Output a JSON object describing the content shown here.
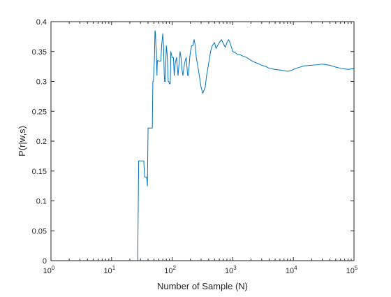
{
  "chart_data": {
    "type": "line",
    "title": "",
    "xlabel": "Number of Sample (N)",
    "ylabel": "P(r|w,s)",
    "xscale": "log",
    "xlim": [
      1,
      100000
    ],
    "ylim": [
      0,
      0.4
    ],
    "grid": false,
    "legend": "none",
    "line_color": "#0072BD",
    "axis_color": "#262626",
    "x_ticks": [
      {
        "base": "10",
        "exp": "0"
      },
      {
        "base": "10",
        "exp": "1"
      },
      {
        "base": "10",
        "exp": "2"
      },
      {
        "base": "10",
        "exp": "3"
      },
      {
        "base": "10",
        "exp": "4"
      },
      {
        "base": "10",
        "exp": "5"
      }
    ],
    "y_ticks": [
      "0",
      "0.05",
      "0.1",
      "0.15",
      "0.2",
      "0.25",
      "0.3",
      "0.35",
      "0.4"
    ],
    "series": [
      {
        "x": [
          2,
          27,
          28,
          29,
          30,
          34,
          35,
          38,
          39,
          40,
          41,
          42,
          43,
          46,
          47,
          48,
          49,
          50,
          51,
          52,
          53,
          54,
          55,
          56,
          57,
          58,
          60,
          62,
          63,
          65,
          67,
          70,
          72,
          74,
          75,
          77,
          79,
          80,
          82,
          84,
          86,
          88,
          90,
          93,
          95,
          100,
          105,
          108,
          112,
          118,
          120,
          125,
          130,
          135,
          140,
          145,
          150,
          160,
          170,
          180,
          185,
          195,
          200,
          210,
          220,
          230,
          240,
          250,
          260,
          280,
          300,
          320,
          350,
          370,
          400,
          430,
          460,
          500,
          530,
          560,
          600,
          650,
          700,
          750,
          800,
          850,
          900,
          950,
          1000,
          1100,
          1200,
          1300,
          1500,
          1700,
          2000,
          2300,
          2600,
          3000,
          3500,
          4000,
          5000,
          6000,
          7000,
          8000,
          9000,
          10000,
          12000,
          15000,
          20000,
          25000,
          30000,
          40000,
          50000,
          60000,
          70000,
          80000,
          90000,
          100000
        ],
        "y": [
          0,
          0,
          0.167,
          0.167,
          0.167,
          0.167,
          0.14,
          0.14,
          0.125,
          0.222,
          0.222,
          0.222,
          0.222,
          0.222,
          0.222,
          0.3,
          0.3,
          0.32,
          0.34,
          0.385,
          0.38,
          0.36,
          0.35,
          0.31,
          0.335,
          0.335,
          0.334,
          0.334,
          0.334,
          0.334,
          0.36,
          0.38,
          0.36,
          0.31,
          0.3,
          0.3,
          0.34,
          0.36,
          0.35,
          0.33,
          0.3,
          0.3,
          0.296,
          0.296,
          0.35,
          0.34,
          0.34,
          0.31,
          0.33,
          0.34,
          0.33,
          0.31,
          0.33,
          0.35,
          0.34,
          0.32,
          0.31,
          0.33,
          0.34,
          0.31,
          0.31,
          0.34,
          0.35,
          0.36,
          0.36,
          0.37,
          0.36,
          0.34,
          0.33,
          0.31,
          0.29,
          0.28,
          0.29,
          0.31,
          0.33,
          0.35,
          0.36,
          0.365,
          0.355,
          0.36,
          0.365,
          0.37,
          0.363,
          0.357,
          0.365,
          0.37,
          0.365,
          0.357,
          0.35,
          0.348,
          0.345,
          0.345,
          0.342,
          0.34,
          0.335,
          0.332,
          0.33,
          0.327,
          0.325,
          0.322,
          0.32,
          0.319,
          0.318,
          0.317,
          0.318,
          0.32,
          0.323,
          0.326,
          0.327,
          0.328,
          0.329,
          0.327,
          0.324,
          0.322,
          0.321,
          0.32,
          0.321,
          0.321
        ]
      }
    ]
  }
}
